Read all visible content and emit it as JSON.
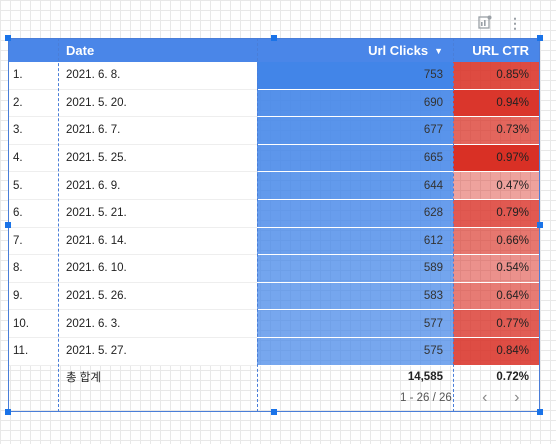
{
  "toolbar": {
    "chart_icon": "chart-settings-icon",
    "more_icon": "more-vert-icon"
  },
  "colors": {
    "header_bg": "#4a86e8",
    "clicks_bg": "#4a86e8",
    "ctr_bg_base": "#d93025",
    "selection": "#1a73e8"
  },
  "table": {
    "headers": {
      "date": "Date",
      "clicks": "Url Clicks",
      "ctr": "URL CTR"
    },
    "rows": [
      {
        "idx": "1.",
        "date": "2021. 6. 8.",
        "clicks": "753",
        "ctr": "0.85%",
        "clicks_num": 753,
        "ctr_num": 0.85
      },
      {
        "idx": "2.",
        "date": "2021. 5. 20.",
        "clicks": "690",
        "ctr": "0.94%",
        "clicks_num": 690,
        "ctr_num": 0.94
      },
      {
        "idx": "3.",
        "date": "2021. 6. 7.",
        "clicks": "677",
        "ctr": "0.73%",
        "clicks_num": 677,
        "ctr_num": 0.73
      },
      {
        "idx": "4.",
        "date": "2021. 5. 25.",
        "clicks": "665",
        "ctr": "0.97%",
        "clicks_num": 665,
        "ctr_num": 0.97
      },
      {
        "idx": "5.",
        "date": "2021. 6. 9.",
        "clicks": "644",
        "ctr": "0.47%",
        "clicks_num": 644,
        "ctr_num": 0.47
      },
      {
        "idx": "6.",
        "date": "2021. 5. 21.",
        "clicks": "628",
        "ctr": "0.79%",
        "clicks_num": 628,
        "ctr_num": 0.79
      },
      {
        "idx": "7.",
        "date": "2021. 6. 14.",
        "clicks": "612",
        "ctr": "0.66%",
        "clicks_num": 612,
        "ctr_num": 0.66
      },
      {
        "idx": "8.",
        "date": "2021. 6. 10.",
        "clicks": "589",
        "ctr": "0.54%",
        "clicks_num": 589,
        "ctr_num": 0.54
      },
      {
        "idx": "9.",
        "date": "2021. 5. 26.",
        "clicks": "583",
        "ctr": "0.64%",
        "clicks_num": 583,
        "ctr_num": 0.64
      },
      {
        "idx": "10.",
        "date": "2021. 6. 3.",
        "clicks": "577",
        "ctr": "0.77%",
        "clicks_num": 577,
        "ctr_num": 0.77
      },
      {
        "idx": "11.",
        "date": "2021. 5. 27.",
        "clicks": "575",
        "ctr": "0.84%",
        "clicks_num": 575,
        "ctr_num": 0.84
      }
    ],
    "footer": {
      "label": "총 합계",
      "clicks": "14,585",
      "ctr": "0.72%"
    }
  },
  "pager": {
    "text": "1 - 26 / 26",
    "prev_icon": "chevron-left-icon",
    "next_icon": "chevron-right-icon"
  }
}
